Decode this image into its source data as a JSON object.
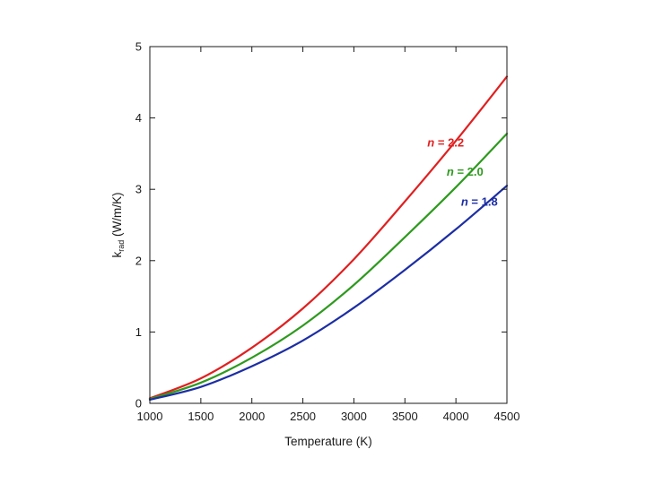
{
  "chart_data": {
    "type": "line",
    "title": "",
    "xlabel": "Temperature (K)",
    "ylabel": {
      "main": "k",
      "subscript": "rad",
      "units": " (W/m/K)"
    },
    "xlim": [
      1000,
      4500
    ],
    "ylim": [
      0,
      5
    ],
    "xticks": [
      "1000",
      "1500",
      "2000",
      "2500",
      "3000",
      "3500",
      "4000",
      "4500"
    ],
    "yticks": [
      "0",
      "1",
      "2",
      "3",
      "4",
      "5"
    ],
    "grid": false,
    "x": [
      1000,
      1500,
      2000,
      2500,
      3000,
      3500,
      4000,
      4500
    ],
    "series": [
      {
        "name": "n = 2.2",
        "symbol": "n",
        "value_text": " = 2.2",
        "color": "#e02020",
        "values": [
          0.07,
          0.35,
          0.78,
          1.33,
          2.02,
          2.83,
          3.68,
          4.58
        ]
      },
      {
        "name": "n = 2.0",
        "symbol": "n",
        "value_text": " = 2.0",
        "color": "#2e9a1e",
        "values": [
          0.06,
          0.29,
          0.64,
          1.09,
          1.66,
          2.33,
          3.03,
          3.78
        ]
      },
      {
        "name": "n = 1.8",
        "symbol": "n",
        "value_text": " = 1.8",
        "color": "#1c2ea4",
        "values": [
          0.05,
          0.23,
          0.52,
          0.88,
          1.34,
          1.87,
          2.44,
          3.05
        ]
      }
    ]
  }
}
